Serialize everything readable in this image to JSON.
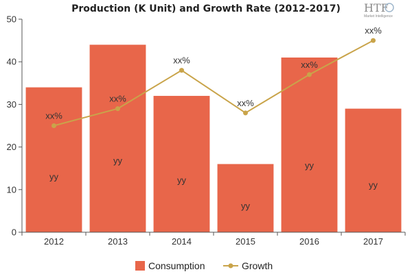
{
  "chart_data": {
    "type": "bar",
    "title": "Production (K Unit) and Growth Rate (2012-2017)",
    "categories": [
      "2012",
      "2013",
      "2014",
      "2015",
      "2016",
      "2017"
    ],
    "ylim": [
      0,
      50
    ],
    "yticks": [
      0,
      10,
      20,
      30,
      40,
      50
    ],
    "series": [
      {
        "name": "Consumption",
        "type": "bar",
        "color": "#e8664a",
        "values": [
          34,
          44,
          32,
          16,
          41,
          29
        ],
        "labels": [
          "yy",
          "yy",
          "yy",
          "yy",
          "yy",
          "yy"
        ]
      },
      {
        "name": "Growth",
        "type": "line",
        "color": "#c9a44a",
        "values": [
          25,
          29,
          38,
          28,
          37,
          45
        ],
        "labels": [
          "xx%",
          "xx%",
          "xx%",
          "xx%",
          "xx%",
          "xx%"
        ]
      }
    ],
    "grid": false,
    "legend": "bottom"
  },
  "logo": {
    "text": "HTF",
    "subtext": "Market Intelligence"
  }
}
